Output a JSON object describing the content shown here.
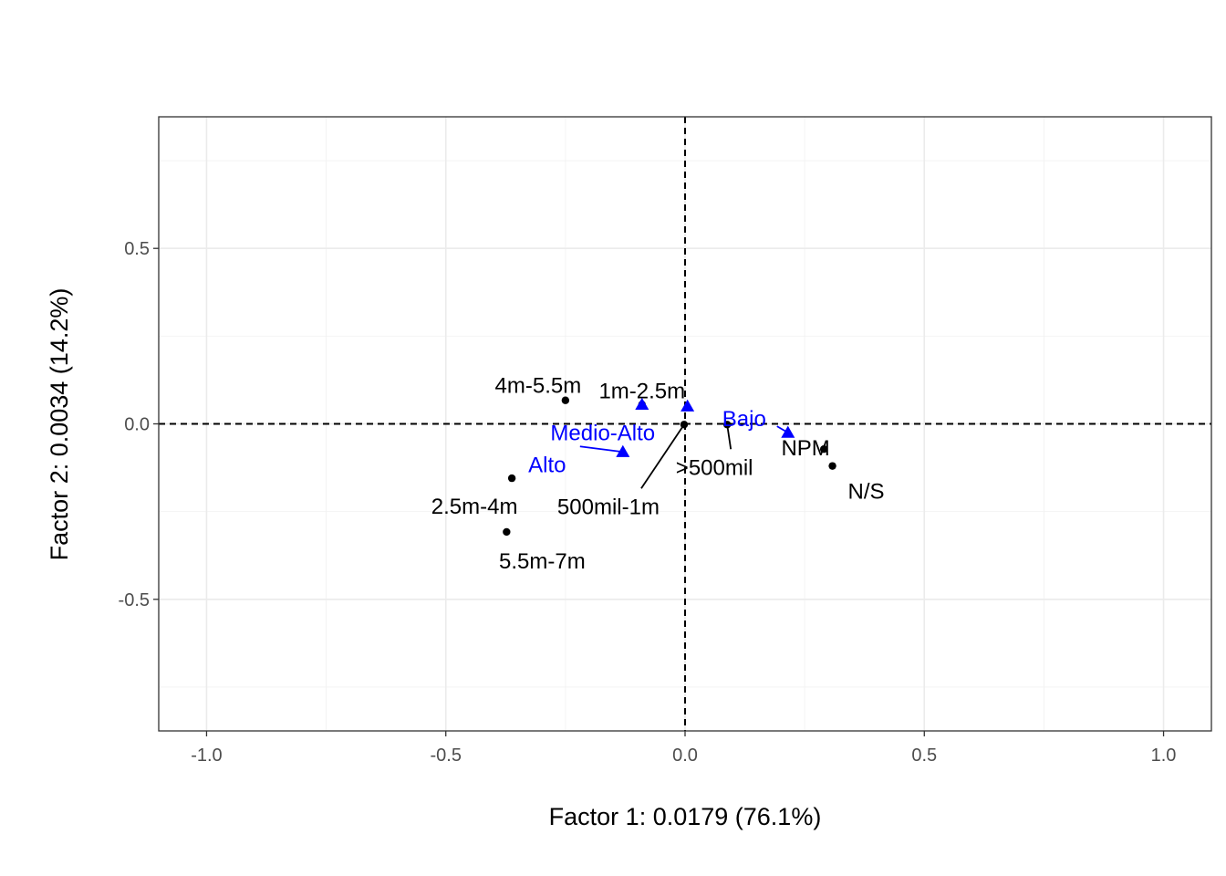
{
  "chart_data": {
    "type": "scatter",
    "xlabel": "Factor 1: 0.0179 (76.1%)",
    "ylabel": "Factor 2: 0.0034 (14.2%)",
    "xlim": [
      -1.1,
      1.1
    ],
    "ylim": [
      -0.875,
      0.875
    ],
    "x_ticks": [
      -1.0,
      -0.5,
      0.0,
      0.5,
      1.0
    ],
    "x_tick_labels": [
      "-1.0",
      "-0.5",
      "0.0",
      "0.5",
      "1.0"
    ],
    "y_ticks": [
      -0.5,
      0.0,
      0.5
    ],
    "y_tick_labels": [
      "-0.5",
      "0.0",
      "0.5"
    ],
    "grid": true,
    "reference_lines": {
      "x": 0,
      "y": 0,
      "style": "dashed"
    },
    "colors": {
      "row": "#000000",
      "col": "#0000ff"
    },
    "series": [
      {
        "marker": "circle",
        "color": "#000000",
        "points": [
          {
            "label": "4m-5.5m",
            "x": -0.25,
            "y": 0.067
          },
          {
            "label": "1m-2.5m",
            "x": -0.09,
            "y": 0.055
          },
          {
            "label": "500mil-1m",
            "x": -0.002,
            "y": -0.002
          },
          {
            "label": ">500mil",
            "x": 0.088,
            "y": -0.002
          },
          {
            "label": "NPM",
            "x": 0.29,
            "y": -0.072
          },
          {
            "label": "N/S",
            "x": 0.308,
            "y": -0.12
          },
          {
            "label": "2.5m-4m",
            "x": -0.362,
            "y": -0.155
          },
          {
            "label": "5.5m-7m",
            "x": -0.373,
            "y": -0.308
          }
        ]
      },
      {
        "marker": "triangle",
        "color": "#0000ff",
        "points": [
          {
            "label": "Medio-Alto",
            "x": -0.09,
            "y": 0.055
          },
          {
            "label": "",
            "x": 0.005,
            "y": 0.05
          },
          {
            "label": "Bajo",
            "x": 0.215,
            "y": -0.025
          },
          {
            "label": "Alto",
            "x": -0.13,
            "y": -0.08
          }
        ]
      }
    ]
  }
}
